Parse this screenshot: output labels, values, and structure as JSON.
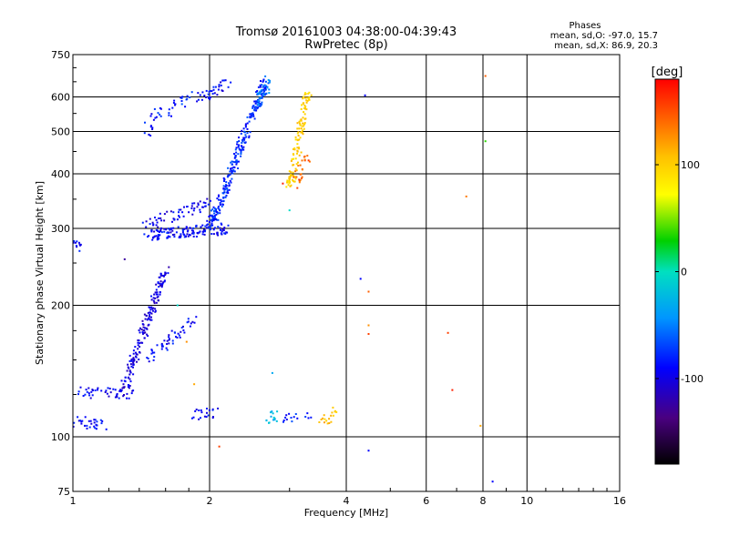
{
  "chart_data": {
    "type": "scatter",
    "title": "Tromsø 20161003 04:38:00-04:39:43",
    "subtitle": "RwPretec (8p)",
    "xlabel": "Frequency [MHz]",
    "ylabel": "Stationary phase Virtual Height [km]",
    "x_scale": "log",
    "y_scale": "log",
    "xlim": [
      1,
      16
    ],
    "ylim": [
      75,
      750
    ],
    "x_ticks": [
      1,
      2,
      4,
      6,
      8,
      10,
      16
    ],
    "x_tick_labels": [
      "1",
      "2",
      "4",
      "6",
      "8",
      "10",
      "16"
    ],
    "y_ticks": [
      75,
      100,
      200,
      300,
      400,
      500,
      600,
      750
    ],
    "y_tick_labels": [
      "75",
      "100",
      "200",
      "300",
      "400",
      "500",
      "600",
      "750"
    ],
    "grid": true,
    "stats": {
      "heading": "Phases",
      "line_o": "mean, sd,O: -97.0, 15.7",
      "line_x": "mean, sd,X:  86.9, 20.3"
    },
    "colorbar": {
      "label": "[deg]",
      "range": [
        -180,
        180
      ],
      "ticks": [
        100,
        0,
        -100
      ],
      "tick_labels": [
        "100",
        "0",
        "-100"
      ]
    },
    "segments": [
      {
        "x": [
          1.0,
          1.04
        ],
        "y": [
          275,
          270
        ],
        "phase": -100,
        "n": 12
      },
      {
        "x": [
          1.0,
          1.2
        ],
        "y": [
          108,
          107
        ],
        "phase": -100,
        "n": 30
      },
      {
        "x": [
          1.02,
          1.35
        ],
        "y": [
          126,
          126
        ],
        "phase": -105,
        "n": 45
      },
      {
        "x": [
          1.3,
          1.6
        ],
        "y": [
          130,
          240
        ],
        "phase": -110,
        "n": 170
      },
      {
        "x": [
          1.45,
          1.85
        ],
        "y": [
          150,
          185
        ],
        "phase": -100,
        "n": 50
      },
      {
        "x": [
          1.45,
          1.55
        ],
        "y": [
          500,
          560
        ],
        "phase": -95,
        "n": 20
      },
      {
        "x": [
          1.6,
          1.82
        ],
        "y": [
          550,
          600
        ],
        "phase": -90,
        "n": 20
      },
      {
        "x": [
          1.85,
          2.2
        ],
        "y": [
          590,
          640
        ],
        "phase": -100,
        "n": 35
      },
      {
        "x": [
          1.45,
          2.2
        ],
        "y": [
          290,
          300
        ],
        "phase": -100,
        "n": 140
      },
      {
        "x": [
          1.45,
          2.0
        ],
        "y": [
          305,
          345
        ],
        "phase": -105,
        "n": 60
      },
      {
        "x": [
          2.0,
          2.65
        ],
        "y": [
          300,
          650
        ],
        "phase": -90,
        "n": 260
      },
      {
        "x": [
          2.55,
          2.7
        ],
        "y": [
          580,
          650
        ],
        "phase": -70,
        "n": 40
      },
      {
        "x": [
          3.0,
          3.3
        ],
        "y": [
          370,
          620
        ],
        "phase": 100,
        "n": 120
      },
      {
        "x": [
          3.1,
          3.3
        ],
        "y": [
          380,
          450
        ],
        "phase": 150,
        "n": 25
      },
      {
        "x": [
          1.85,
          2.05
        ],
        "y": [
          112,
          114
        ],
        "phase": -100,
        "n": 20
      },
      {
        "x": [
          2.65,
          2.8
        ],
        "y": [
          110,
          112
        ],
        "phase": -40,
        "n": 15
      },
      {
        "x": [
          2.9,
          3.3
        ],
        "y": [
          110,
          112
        ],
        "phase": -90,
        "n": 15
      },
      {
        "x": [
          3.55,
          3.8
        ],
        "y": [
          108,
          114
        ],
        "phase": 110,
        "n": 18
      }
    ],
    "points": [
      {
        "x": 1.78,
        "y": 165,
        "phase": 130
      },
      {
        "x": 1.85,
        "y": 132,
        "phase": 120
      },
      {
        "x": 2.1,
        "y": 95,
        "phase": 160
      },
      {
        "x": 2.75,
        "y": 140,
        "phase": -50
      },
      {
        "x": 2.9,
        "y": 380,
        "phase": 170
      },
      {
        "x": 3.0,
        "y": 330,
        "phase": -20
      },
      {
        "x": 4.4,
        "y": 605,
        "phase": -100
      },
      {
        "x": 4.3,
        "y": 230,
        "phase": -100
      },
      {
        "x": 4.48,
        "y": 215,
        "phase": 150
      },
      {
        "x": 4.48,
        "y": 180,
        "phase": 130
      },
      {
        "x": 4.48,
        "y": 172,
        "phase": 160
      },
      {
        "x": 4.48,
        "y": 93,
        "phase": -100
      },
      {
        "x": 6.7,
        "y": 173,
        "phase": 160
      },
      {
        "x": 6.85,
        "y": 128,
        "phase": 170
      },
      {
        "x": 7.35,
        "y": 355,
        "phase": 140
      },
      {
        "x": 7.9,
        "y": 106,
        "phase": 120
      },
      {
        "x": 8.1,
        "y": 670,
        "phase": 150
      },
      {
        "x": 8.1,
        "y": 475,
        "phase": 20
      },
      {
        "x": 8.4,
        "y": 79,
        "phase": -100
      },
      {
        "x": 1.3,
        "y": 255,
        "phase": -130
      },
      {
        "x": 1.7,
        "y": 200,
        "phase": -20
      }
    ]
  }
}
